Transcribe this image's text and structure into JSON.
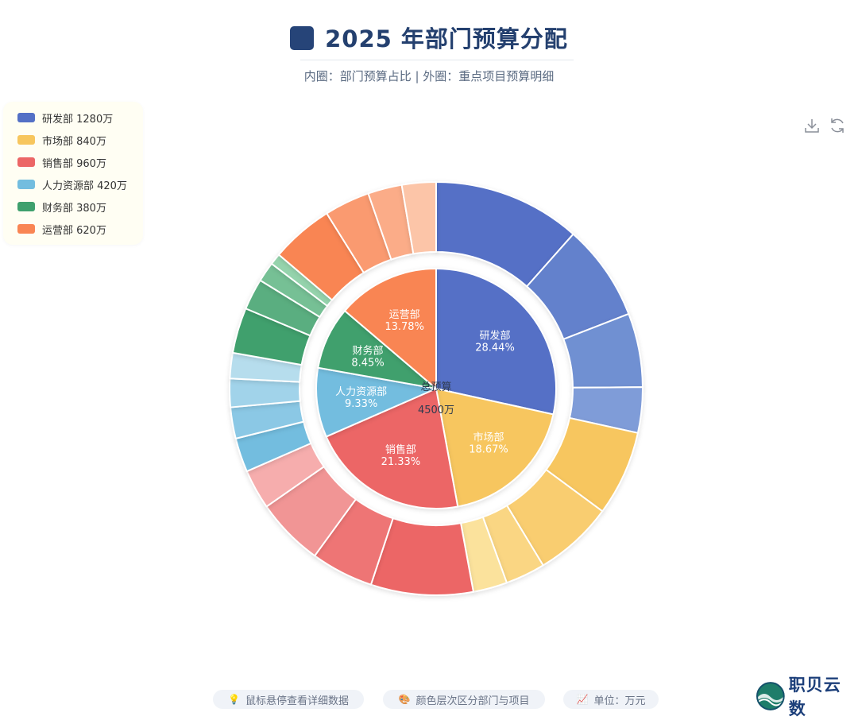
{
  "page": {
    "title": "2025 年部门预算分配",
    "subtitle": "内圈：部门预算占比 | 外圈：重点项目预算明细"
  },
  "legend": [
    {
      "label": "研发部  1280万",
      "color": "#5470c6"
    },
    {
      "label": "市场部  840万",
      "color": "#f7c65e"
    },
    {
      "label": "销售部  960万",
      "color": "#ec6666"
    },
    {
      "label": "人力资源部  420万",
      "color": "#73bddf"
    },
    {
      "label": "财务部  380万",
      "color": "#3fa06d"
    },
    {
      "label": "运营部  620万",
      "color": "#f98553"
    }
  ],
  "toolbar": {
    "download_icon": "download-icon",
    "refresh_icon": "refresh-icon"
  },
  "center": {
    "label": "总预算",
    "value": "4500万"
  },
  "footer": {
    "tips": [
      {
        "icon": "lightbulb-icon",
        "glyph": "💡",
        "text": "鼠标悬停查看详细数据"
      },
      {
        "icon": "palette-icon",
        "glyph": "🎨",
        "text": "颜色层次区分部门与项目"
      },
      {
        "icon": "chart-icon",
        "glyph": "📈",
        "text": "单位：万元"
      }
    ]
  },
  "brand": {
    "name": "职贝云数",
    "icon": "logo-globe-icon"
  },
  "chart_data": {
    "type": "pie",
    "inner": {
      "categories": [
        "研发部",
        "市场部",
        "销售部",
        "人力资源部",
        "财务部",
        "运营部"
      ],
      "values": [
        1280,
        840,
        960,
        420,
        380,
        620
      ],
      "percent_labels": [
        "28.44%",
        "18.67%",
        "21.33%",
        "9.33%",
        "8.45%",
        "13.78%"
      ],
      "colors": [
        "#5470c6",
        "#f7c65e",
        "#ec6666",
        "#73bddf",
        "#3fa06d",
        "#f98553"
      ]
    },
    "outer": {
      "groups": [
        {
          "department": "研发部",
          "values": [
            520,
            340,
            260,
            160
          ],
          "colors": [
            "#5470c6",
            "#6381cc",
            "#7090d2",
            "#7f9cd8"
          ]
        },
        {
          "department": "市场部",
          "values": [
            300,
            280,
            140,
            120
          ],
          "colors": [
            "#f7c65e",
            "#f9cd70",
            "#fad683",
            "#fbe29c"
          ]
        },
        {
          "department": "销售部",
          "values": [
            360,
            220,
            240,
            140
          ],
          "colors": [
            "#ec6666",
            "#ee7575",
            "#f19595",
            "#f6adad"
          ]
        },
        {
          "department": "人力资源部",
          "values": [
            120,
            110,
            100,
            90
          ],
          "colors": [
            "#73bddf",
            "#8bc8e5",
            "#a1d3ea",
            "#b6dded"
          ]
        },
        {
          "department": "财务部",
          "values": [
            160,
            110,
            70,
            40
          ],
          "colors": [
            "#3fa06d",
            "#5aae80",
            "#76c095",
            "#95d3ac"
          ]
        },
        {
          "department": "运营部",
          "values": [
            220,
            160,
            120,
            120
          ],
          "colors": [
            "#f98553",
            "#fa9a6f",
            "#fbac88",
            "#fcc5a8"
          ]
        }
      ]
    },
    "legend_position": "top-left",
    "unit": "万元"
  }
}
